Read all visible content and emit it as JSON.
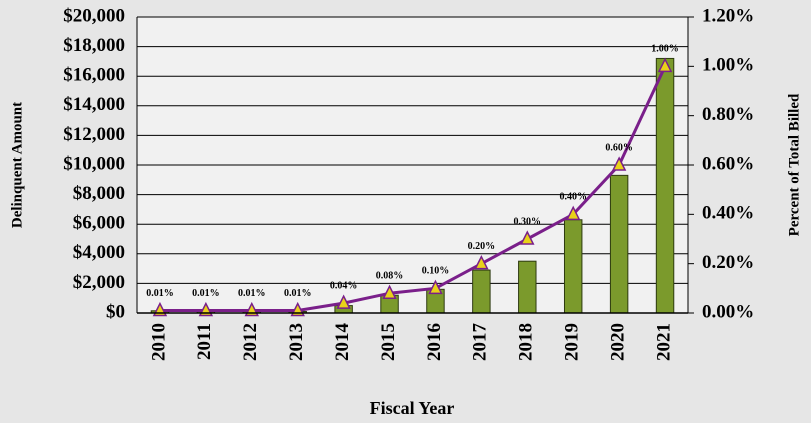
{
  "chart_data": {
    "type": "bar_line",
    "categories": [
      "2010",
      "2011",
      "2012",
      "2013",
      "2014",
      "2015",
      "2016",
      "2017",
      "2018",
      "2019",
      "2020",
      "2021"
    ],
    "x_label": "Fiscal Year",
    "y_label": "Delinquent Amount",
    "y2_label": "Percent of Total Billed",
    "series": [
      {
        "name": "Delinquent Amount",
        "type": "bar",
        "color": "#7b9a2c",
        "values": [
          150,
          100,
          100,
          100,
          500,
          1200,
          1600,
          2900,
          3500,
          6300,
          9300,
          17200
        ]
      },
      {
        "name": "Percent of Total Billed",
        "type": "line",
        "axis": "y2",
        "color": "#7a1f8a",
        "marker_color": "#e8d21a",
        "values": [
          0.01,
          0.01,
          0.01,
          0.01,
          0.04,
          0.08,
          0.1,
          0.2,
          0.3,
          0.4,
          0.6,
          1.0
        ],
        "value_labels": [
          "0.01%",
          "0.01%",
          "0.01%",
          "0.01%",
          "0.04%",
          "0.08%",
          "0.10%",
          "0.20%",
          "0.30%",
          "0.40%",
          "0.60%",
          "1.00%"
        ]
      }
    ],
    "ylim": [
      0,
      20000
    ],
    "yticks": [
      {
        "value": 0,
        "label": "$0"
      },
      {
        "value": 2000,
        "label": "$2,000"
      },
      {
        "value": 4000,
        "label": "$4,000"
      },
      {
        "value": 6000,
        "label": "$6,000"
      },
      {
        "value": 8000,
        "label": "$8,000"
      },
      {
        "value": 10000,
        "label": "$10,000"
      },
      {
        "value": 12000,
        "label": "$12,000"
      },
      {
        "value": 14000,
        "label": "$14,000"
      },
      {
        "value": 16000,
        "label": "$16,000"
      },
      {
        "value": 18000,
        "label": "$18,000"
      },
      {
        "value": 20000,
        "label": "$20,000"
      }
    ],
    "y2lim": [
      0,
      1.2
    ],
    "y2ticks": [
      {
        "value": 0,
        "label": "0.00%"
      },
      {
        "value": 0.2,
        "label": "0.20%"
      },
      {
        "value": 0.4,
        "label": "0.40%"
      },
      {
        "value": 0.6,
        "label": "0.60%"
      },
      {
        "value": 0.8,
        "label": "0.80%"
      },
      {
        "value": 1.0,
        "label": "1.00%"
      },
      {
        "value": 1.2,
        "label": "1.20%"
      }
    ],
    "grid": true
  }
}
